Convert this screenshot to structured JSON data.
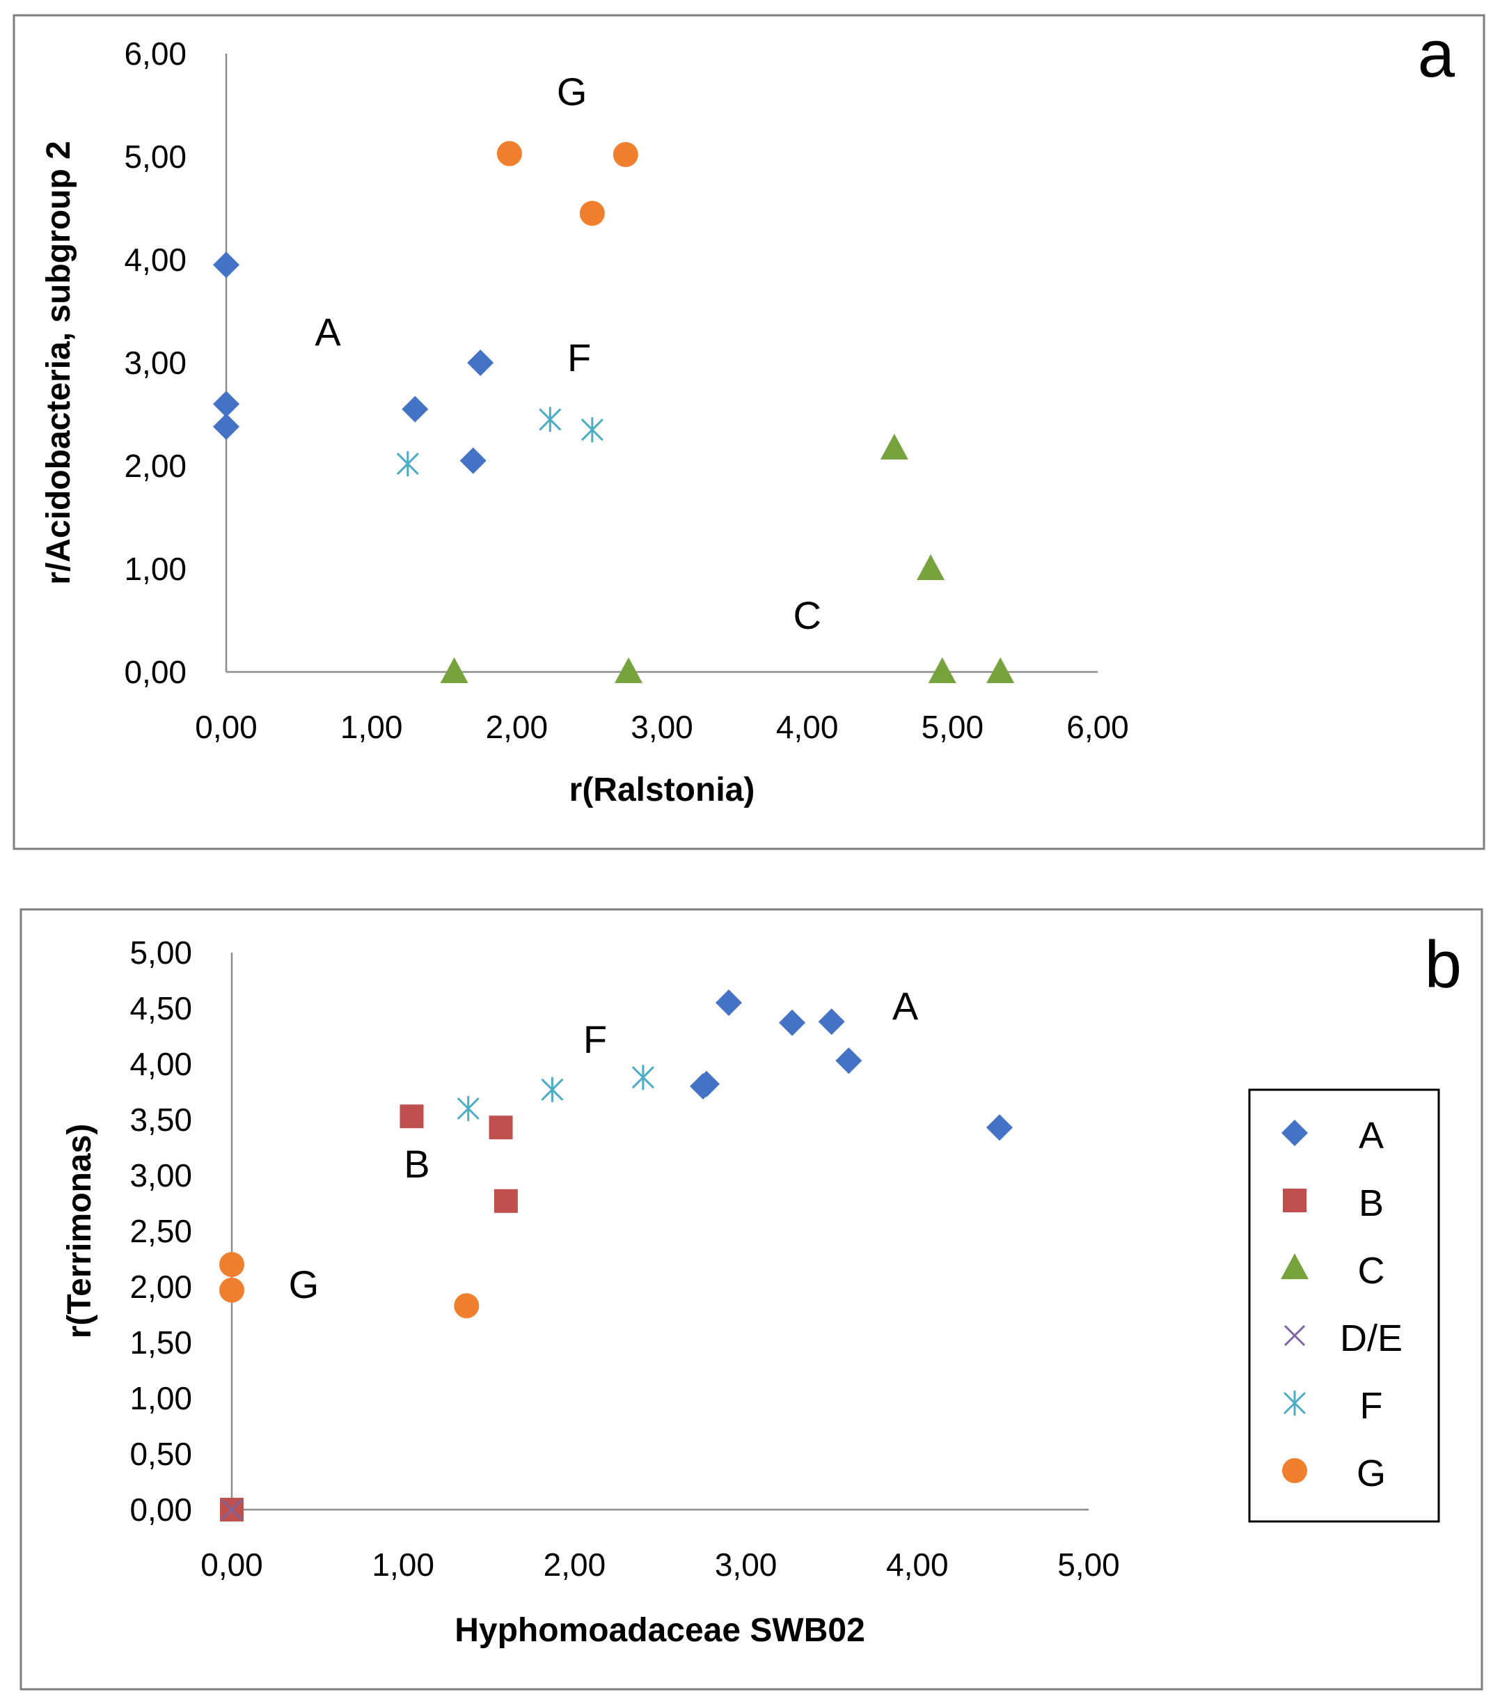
{
  "colors": {
    "A": "#4472C4",
    "B": "#C0504D",
    "C": "#77A33D",
    "D/E": "#8064A2",
    "F": "#4BACC6",
    "G": "#F07F2E",
    "axis": "#8C8C8C",
    "frame": "#7F7F7F",
    "text": "#000000"
  },
  "chart_data": [
    {
      "type": "scatter",
      "panel_label": "a",
      "xlabel": "r(Ralstonia)",
      "ylabel": "r/Acidobacteria, subgroup 2",
      "xlim": [
        0,
        6
      ],
      "ylim": [
        0,
        6
      ],
      "x_ticks": [
        "0,00",
        "1,00",
        "2,00",
        "3,00",
        "4,00",
        "5,00",
        "6,00"
      ],
      "y_ticks": [
        "0,00",
        "1,00",
        "2,00",
        "3,00",
        "4,00",
        "5,00",
        "6,00"
      ],
      "series": [
        {
          "name": "A",
          "marker": "diamond",
          "points": [
            [
              0,
              3.95
            ],
            [
              0,
              2.6
            ],
            [
              0,
              2.38
            ],
            [
              1.3,
              2.55
            ],
            [
              1.75,
              3.0
            ],
            [
              1.7,
              2.05
            ]
          ]
        },
        {
          "name": "C",
          "marker": "triangle",
          "points": [
            [
              1.57,
              0.0
            ],
            [
              2.77,
              0.0
            ],
            [
              4.6,
              2.17
            ],
            [
              4.85,
              1.0
            ],
            [
              4.93,
              0.0
            ],
            [
              5.33,
              0.0
            ]
          ]
        },
        {
          "name": "F",
          "marker": "asterisk",
          "points": [
            [
              1.25,
              2.02
            ],
            [
              2.23,
              2.45
            ],
            [
              2.52,
              2.35
            ]
          ]
        },
        {
          "name": "G",
          "marker": "circle",
          "points": [
            [
              1.95,
              5.03
            ],
            [
              2.52,
              4.45
            ],
            [
              2.75,
              5.02
            ]
          ]
        }
      ],
      "annotations": [
        {
          "text": "G",
          "x": 2.38,
          "y": 5.5
        },
        {
          "text": "A",
          "x": 0.7,
          "y": 3.17
        },
        {
          "text": "F",
          "x": 2.43,
          "y": 2.92
        },
        {
          "text": "C",
          "x": 4.0,
          "y": 0.42
        }
      ]
    },
    {
      "type": "scatter",
      "panel_label": "b",
      "xlabel": "Hyphomoadaceae  SWB02",
      "ylabel": "r(Terrimonas)",
      "xlim": [
        0,
        5
      ],
      "ylim": [
        0,
        5
      ],
      "x_ticks": [
        "0,00",
        "1,00",
        "2,00",
        "3,00",
        "4,00",
        "5,00"
      ],
      "y_ticks": [
        "0,00",
        "0,50",
        "1,00",
        "1,50",
        "2,00",
        "2,50",
        "3,00",
        "3,50",
        "4,00",
        "4,50",
        "5,00"
      ],
      "series": [
        {
          "name": "A",
          "marker": "diamond",
          "points": [
            [
              2.9,
              4.55
            ],
            [
              3.27,
              4.37
            ],
            [
              3.5,
              4.38
            ],
            [
              3.6,
              4.03
            ],
            [
              2.77,
              3.82
            ],
            [
              2.75,
              3.8
            ],
            [
              4.48,
              3.43
            ]
          ]
        },
        {
          "name": "B",
          "marker": "square",
          "points": [
            [
              1.05,
              3.53
            ],
            [
              1.57,
              3.43
            ],
            [
              1.6,
              2.77
            ],
            [
              0.0,
              0.0
            ]
          ]
        },
        {
          "name": "C",
          "marker": "triangle",
          "points": []
        },
        {
          "name": "D/E",
          "marker": "cross",
          "points": [
            [
              0.0,
              0.0
            ]
          ]
        },
        {
          "name": "F",
          "marker": "asterisk",
          "points": [
            [
              1.38,
              3.6
            ],
            [
              1.87,
              3.77
            ],
            [
              2.4,
              3.88
            ]
          ]
        },
        {
          "name": "G",
          "marker": "circle",
          "points": [
            [
              0.0,
              2.2
            ],
            [
              0.0,
              1.97
            ],
            [
              1.37,
              1.83
            ]
          ]
        }
      ],
      "annotations": [
        {
          "text": "A",
          "x": 3.93,
          "y": 4.4
        },
        {
          "text": "F",
          "x": 2.12,
          "y": 4.1
        },
        {
          "text": "B",
          "x": 1.08,
          "y": 2.98
        },
        {
          "text": "G",
          "x": 0.42,
          "y": 1.9
        }
      ],
      "legend": {
        "placement": "right",
        "entries": [
          "A",
          "B",
          "C",
          "D/E",
          "F",
          "G"
        ]
      }
    }
  ]
}
